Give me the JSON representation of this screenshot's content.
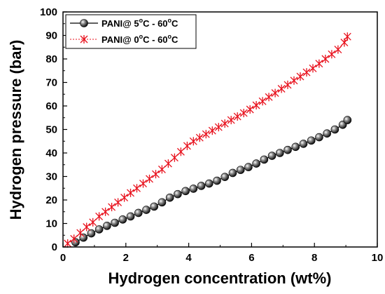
{
  "chart_data": {
    "type": "line",
    "xlabel": "Hydrogen concentration (wt%)",
    "ylabel": "Hydrogen pressure (bar)",
    "xlim": [
      0,
      10
    ],
    "ylim": [
      0,
      100
    ],
    "xticks": [
      "0",
      "2",
      "4",
      "6",
      "8",
      "10"
    ],
    "yticks": [
      "0",
      "10",
      "20",
      "30",
      "40",
      "50",
      "60",
      "70",
      "80",
      "90",
      "100"
    ],
    "grid": false,
    "legend_position": "top-left",
    "series": [
      {
        "name_parts": [
          "PANI@ 5",
          "o",
          "C - 60",
          "o",
          "C"
        ],
        "color": "#000000",
        "marker": "sphere",
        "x": [
          0.4,
          0.65,
          0.9,
          1.15,
          1.4,
          1.65,
          1.9,
          2.15,
          2.4,
          2.65,
          2.9,
          3.15,
          3.4,
          3.65,
          3.9,
          4.15,
          4.4,
          4.65,
          4.9,
          5.15,
          5.4,
          5.65,
          5.9,
          6.15,
          6.4,
          6.65,
          6.9,
          7.15,
          7.4,
          7.65,
          7.9,
          8.15,
          8.4,
          8.65,
          8.9,
          9.05
        ],
        "y": [
          2,
          4,
          5.8,
          7.5,
          9,
          10.3,
          11.7,
          13,
          14.5,
          15.8,
          17.2,
          19,
          21,
          22.5,
          23.8,
          24.8,
          26,
          27,
          28.2,
          29.8,
          31.5,
          32.8,
          34,
          35.5,
          37.2,
          38.8,
          40,
          41.3,
          42.6,
          43.9,
          45.3,
          46.7,
          48.3,
          50,
          52,
          54
        ]
      },
      {
        "name_parts": [
          "PANI@ 0",
          "o",
          "C - 60",
          "o",
          "C"
        ],
        "color": "#e8101c",
        "marker": "star",
        "x": [
          0.15,
          0.35,
          0.55,
          0.75,
          0.95,
          1.15,
          1.35,
          1.55,
          1.75,
          1.95,
          2.15,
          2.35,
          2.55,
          2.75,
          2.95,
          3.15,
          3.35,
          3.55,
          3.75,
          3.95,
          4.15,
          4.35,
          4.55,
          4.75,
          4.95,
          5.15,
          5.35,
          5.55,
          5.75,
          5.95,
          6.15,
          6.35,
          6.55,
          6.75,
          6.95,
          7.15,
          7.35,
          7.55,
          7.75,
          7.95,
          8.15,
          8.35,
          8.55,
          8.75,
          8.95,
          9.05
        ],
        "y": [
          1.5,
          3.5,
          6,
          8.5,
          10.5,
          13,
          15,
          17,
          19,
          21,
          23,
          25,
          27,
          29,
          31,
          33,
          35.5,
          38,
          40.5,
          43,
          45,
          46.5,
          48,
          49.5,
          51,
          52.5,
          54,
          55.5,
          57,
          58.5,
          60.3,
          62,
          63.8,
          65.5,
          67.3,
          69,
          70.8,
          72.5,
          74.3,
          76,
          78,
          80,
          82,
          84,
          87,
          89.5
        ]
      }
    ]
  }
}
